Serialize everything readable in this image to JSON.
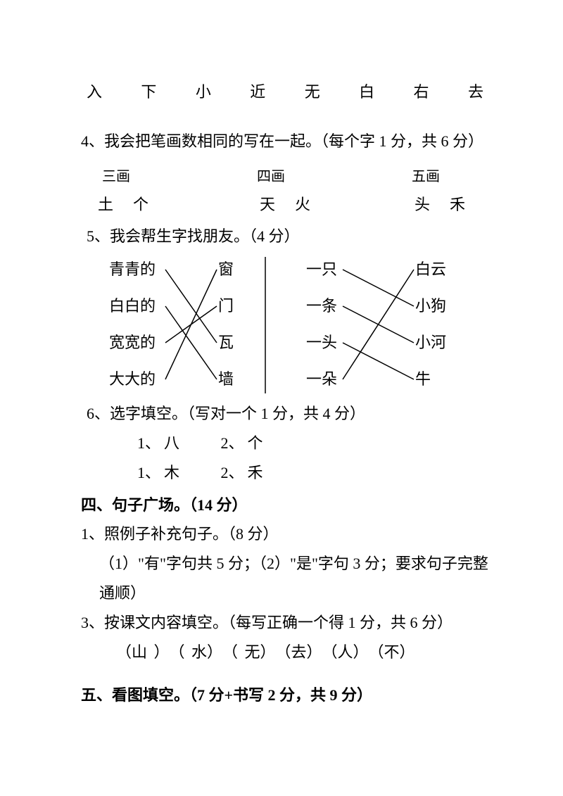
{
  "char_row": [
    "入",
    "下",
    "小",
    "近",
    "无",
    "白",
    "右",
    "去"
  ],
  "q4": {
    "title": "4、我会把笔画数相同的写在一起。（每个字 1 分，共 6 分）",
    "cols": [
      {
        "header": "三画",
        "a": "土",
        "b": "个"
      },
      {
        "header": "四画",
        "a": "天",
        "b": "火"
      },
      {
        "header": "五画",
        "a": "头",
        "b": "禾"
      }
    ]
  },
  "q5": {
    "title": "5、我会帮生字找朋友。（4 分）",
    "left_a": [
      "青青的",
      "白白的",
      "宽宽的",
      "大大的"
    ],
    "left_b": [
      "窗",
      "门",
      "瓦",
      "墙"
    ],
    "right_a": [
      "一只",
      "一条",
      "一头",
      "一朵"
    ],
    "right_b": [
      "白云",
      "小狗",
      "小河",
      "牛"
    ],
    "lines_left": [
      [
        0,
        2
      ],
      [
        1,
        3
      ],
      [
        2,
        1
      ],
      [
        3,
        0
      ]
    ],
    "lines_right": [
      [
        0,
        1
      ],
      [
        1,
        2
      ],
      [
        2,
        3
      ],
      [
        3,
        0
      ]
    ],
    "line_stroke": "#000000",
    "line_width": 1.5
  },
  "q6": {
    "title": "6、选字填空。（写对一个 1 分，共 4 分）",
    "rows": [
      [
        {
          "n": "1、",
          "c": "八"
        },
        {
          "n": "2、",
          "c": "个"
        }
      ],
      [
        {
          "n": "1、",
          "c": "木"
        },
        {
          "n": "2、",
          "c": "禾"
        }
      ]
    ]
  },
  "sec4": {
    "title": "四、句子广场。（14 分）",
    "q1": "1、照例子补充句子。（8 分）",
    "q1_note": "（1）\"有\"字句共 5 分；（2）\"是\"字句 3 分；要求句子完整通顺）",
    "q3": "3、按课文内容填空。（每写正确一个得 1 分，共 6 分）",
    "q3_ans": "（山 ）　（ 水）　（ 无）　（去）　（人）　（不）"
  },
  "sec5": {
    "title": "五、看图填空。（7 分+书写 2 分，共 9 分）"
  }
}
